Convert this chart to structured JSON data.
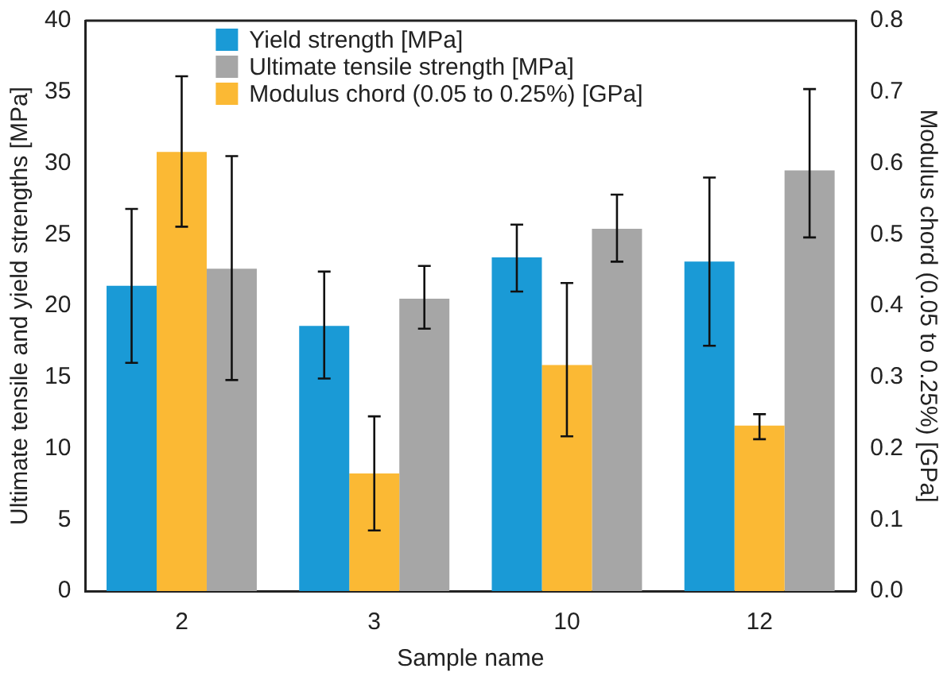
{
  "chart_data": {
    "type": "bar",
    "xlabel": "Sample name",
    "ylabel": "Ultimate tensile and yield strengths [MPa]",
    "y2label": "Modulus chord (0.05 to 0.25%) [GPa]",
    "categories": [
      "2",
      "3",
      "10",
      "12"
    ],
    "series": [
      {
        "name": "Yield strength [MPa]",
        "color": "#1a9ad6",
        "values": [
          21.4,
          18.6,
          23.4,
          23.1
        ],
        "errors": [
          [
            16.0,
            26.8
          ],
          [
            14.9,
            22.4
          ],
          [
            21.0,
            25.7
          ],
          [
            17.2,
            29.0
          ]
        ]
      },
      {
        "name": "Ultimate tensile strength [MPa]",
        "color": "#a6a6a6",
        "values": [
          22.6,
          20.5,
          25.4,
          29.5
        ],
        "errors": [
          [
            14.8,
            30.5
          ],
          [
            18.4,
            22.8
          ],
          [
            23.1,
            27.8
          ],
          [
            24.8,
            35.2
          ]
        ]
      },
      {
        "name": "Modulus chord (0.05 to 0.25%) [GPa]",
        "color": "#fbb934",
        "axis": "y2",
        "values": [
          0.616,
          0.165,
          0.317,
          0.232
        ],
        "errors": [
          [
            0.511,
            0.722
          ],
          [
            0.085,
            0.245
          ],
          [
            0.217,
            0.432
          ],
          [
            0.213,
            0.248
          ]
        ]
      }
    ],
    "ylim": [
      0,
      40
    ],
    "yticks": [
      0,
      5,
      10,
      15,
      20,
      25,
      30,
      35,
      40
    ],
    "y2lim": [
      0,
      0.8
    ],
    "y2ticks": [
      {
        "value": 0,
        "label": "0.0"
      },
      {
        "value": 0.1,
        "label": "0.1"
      },
      {
        "value": 0.2,
        "label": "0.2"
      },
      {
        "value": 0.3,
        "label": "0.3"
      },
      {
        "value": 0.4,
        "label": "0.4"
      },
      {
        "value": 0.5,
        "label": "0.5"
      },
      {
        "value": 0.6,
        "label": "0.6"
      },
      {
        "value": 0.7,
        "label": "0.7"
      },
      {
        "value": 0.8,
        "label": "0.8"
      }
    ],
    "grid": false,
    "legend": "top"
  }
}
